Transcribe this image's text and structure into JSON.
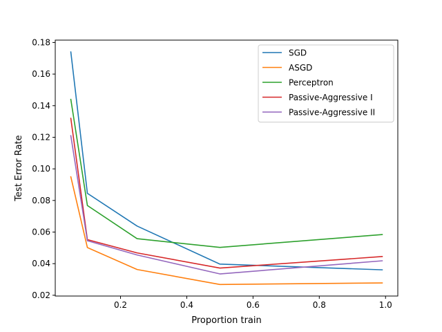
{
  "chart_data": {
    "type": "line",
    "title": "",
    "xlabel": "Proportion train",
    "ylabel": "Test Error Rate",
    "xlim": [
      0.003,
      1.037
    ],
    "ylim": [
      0.0195,
      0.1815
    ],
    "xticks": [
      0.2,
      0.4,
      0.6,
      0.8,
      1.0
    ],
    "xtick_labels": [
      "0.2",
      "0.4",
      "0.6",
      "0.8",
      "1.0"
    ],
    "yticks": [
      0.02,
      0.04,
      0.06,
      0.08,
      0.1,
      0.12,
      0.14,
      0.16,
      0.18
    ],
    "ytick_labels": [
      "0.02",
      "0.04",
      "0.06",
      "0.08",
      "0.10",
      "0.12",
      "0.14",
      "0.16",
      "0.18"
    ],
    "grid": false,
    "legend_position": "top-right",
    "x": [
      0.05,
      0.1,
      0.25,
      0.5,
      0.99
    ],
    "series": [
      {
        "name": "SGD",
        "color": "#1f77b4",
        "values": [
          0.174,
          0.0845,
          0.0638,
          0.0397,
          0.0361
        ]
      },
      {
        "name": "ASGD",
        "color": "#ff7f0e",
        "values": [
          0.095,
          0.0502,
          0.0363,
          0.0268,
          0.0278
        ]
      },
      {
        "name": "Perceptron",
        "color": "#2ca02c",
        "values": [
          0.144,
          0.0768,
          0.0558,
          0.0503,
          0.0584
        ]
      },
      {
        "name": "Passive-Aggressive I",
        "color": "#d62728",
        "values": [
          0.132,
          0.0552,
          0.0468,
          0.0372,
          0.0445
        ]
      },
      {
        "name": "Passive-Aggressive II",
        "color": "#9467bd",
        "values": [
          0.121,
          0.0545,
          0.0455,
          0.0335,
          0.0418
        ]
      }
    ]
  }
}
